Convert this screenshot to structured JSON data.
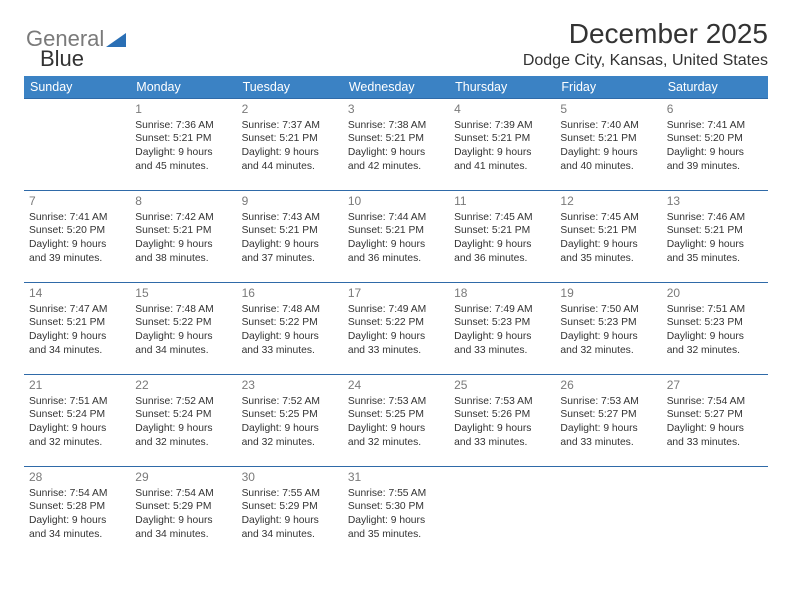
{
  "logo": {
    "text1": "General",
    "text2": "Blue"
  },
  "header": {
    "title": "December 2025",
    "subtitle": "Dodge City, Kansas, United States"
  },
  "colors": {
    "header_bg": "#3b82c4",
    "header_fg": "#ffffff",
    "row_border": "#2f6aa8",
    "daynum": "#7a7a7a",
    "text": "#333333",
    "logo_gray": "#7a7a7a",
    "logo_blue": "#2a6fb5"
  },
  "days": [
    "Sunday",
    "Monday",
    "Tuesday",
    "Wednesday",
    "Thursday",
    "Friday",
    "Saturday"
  ],
  "weeks": [
    [
      null,
      {
        "n": "1",
        "sr": "7:36 AM",
        "ss": "5:21 PM",
        "dl": "9 hours and 45 minutes."
      },
      {
        "n": "2",
        "sr": "7:37 AM",
        "ss": "5:21 PM",
        "dl": "9 hours and 44 minutes."
      },
      {
        "n": "3",
        "sr": "7:38 AM",
        "ss": "5:21 PM",
        "dl": "9 hours and 42 minutes."
      },
      {
        "n": "4",
        "sr": "7:39 AM",
        "ss": "5:21 PM",
        "dl": "9 hours and 41 minutes."
      },
      {
        "n": "5",
        "sr": "7:40 AM",
        "ss": "5:21 PM",
        "dl": "9 hours and 40 minutes."
      },
      {
        "n": "6",
        "sr": "7:41 AM",
        "ss": "5:20 PM",
        "dl": "9 hours and 39 minutes."
      }
    ],
    [
      {
        "n": "7",
        "sr": "7:41 AM",
        "ss": "5:20 PM",
        "dl": "9 hours and 39 minutes."
      },
      {
        "n": "8",
        "sr": "7:42 AM",
        "ss": "5:21 PM",
        "dl": "9 hours and 38 minutes."
      },
      {
        "n": "9",
        "sr": "7:43 AM",
        "ss": "5:21 PM",
        "dl": "9 hours and 37 minutes."
      },
      {
        "n": "10",
        "sr": "7:44 AM",
        "ss": "5:21 PM",
        "dl": "9 hours and 36 minutes."
      },
      {
        "n": "11",
        "sr": "7:45 AM",
        "ss": "5:21 PM",
        "dl": "9 hours and 36 minutes."
      },
      {
        "n": "12",
        "sr": "7:45 AM",
        "ss": "5:21 PM",
        "dl": "9 hours and 35 minutes."
      },
      {
        "n": "13",
        "sr": "7:46 AM",
        "ss": "5:21 PM",
        "dl": "9 hours and 35 minutes."
      }
    ],
    [
      {
        "n": "14",
        "sr": "7:47 AM",
        "ss": "5:21 PM",
        "dl": "9 hours and 34 minutes."
      },
      {
        "n": "15",
        "sr": "7:48 AM",
        "ss": "5:22 PM",
        "dl": "9 hours and 34 minutes."
      },
      {
        "n": "16",
        "sr": "7:48 AM",
        "ss": "5:22 PM",
        "dl": "9 hours and 33 minutes."
      },
      {
        "n": "17",
        "sr": "7:49 AM",
        "ss": "5:22 PM",
        "dl": "9 hours and 33 minutes."
      },
      {
        "n": "18",
        "sr": "7:49 AM",
        "ss": "5:23 PM",
        "dl": "9 hours and 33 minutes."
      },
      {
        "n": "19",
        "sr": "7:50 AM",
        "ss": "5:23 PM",
        "dl": "9 hours and 32 minutes."
      },
      {
        "n": "20",
        "sr": "7:51 AM",
        "ss": "5:23 PM",
        "dl": "9 hours and 32 minutes."
      }
    ],
    [
      {
        "n": "21",
        "sr": "7:51 AM",
        "ss": "5:24 PM",
        "dl": "9 hours and 32 minutes."
      },
      {
        "n": "22",
        "sr": "7:52 AM",
        "ss": "5:24 PM",
        "dl": "9 hours and 32 minutes."
      },
      {
        "n": "23",
        "sr": "7:52 AM",
        "ss": "5:25 PM",
        "dl": "9 hours and 32 minutes."
      },
      {
        "n": "24",
        "sr": "7:53 AM",
        "ss": "5:25 PM",
        "dl": "9 hours and 32 minutes."
      },
      {
        "n": "25",
        "sr": "7:53 AM",
        "ss": "5:26 PM",
        "dl": "9 hours and 33 minutes."
      },
      {
        "n": "26",
        "sr": "7:53 AM",
        "ss": "5:27 PM",
        "dl": "9 hours and 33 minutes."
      },
      {
        "n": "27",
        "sr": "7:54 AM",
        "ss": "5:27 PM",
        "dl": "9 hours and 33 minutes."
      }
    ],
    [
      {
        "n": "28",
        "sr": "7:54 AM",
        "ss": "5:28 PM",
        "dl": "9 hours and 34 minutes."
      },
      {
        "n": "29",
        "sr": "7:54 AM",
        "ss": "5:29 PM",
        "dl": "9 hours and 34 minutes."
      },
      {
        "n": "30",
        "sr": "7:55 AM",
        "ss": "5:29 PM",
        "dl": "9 hours and 34 minutes."
      },
      {
        "n": "31",
        "sr": "7:55 AM",
        "ss": "5:30 PM",
        "dl": "9 hours and 35 minutes."
      },
      null,
      null,
      null
    ]
  ],
  "labels": {
    "sunrise": "Sunrise:",
    "sunset": "Sunset:",
    "daylight": "Daylight:"
  }
}
